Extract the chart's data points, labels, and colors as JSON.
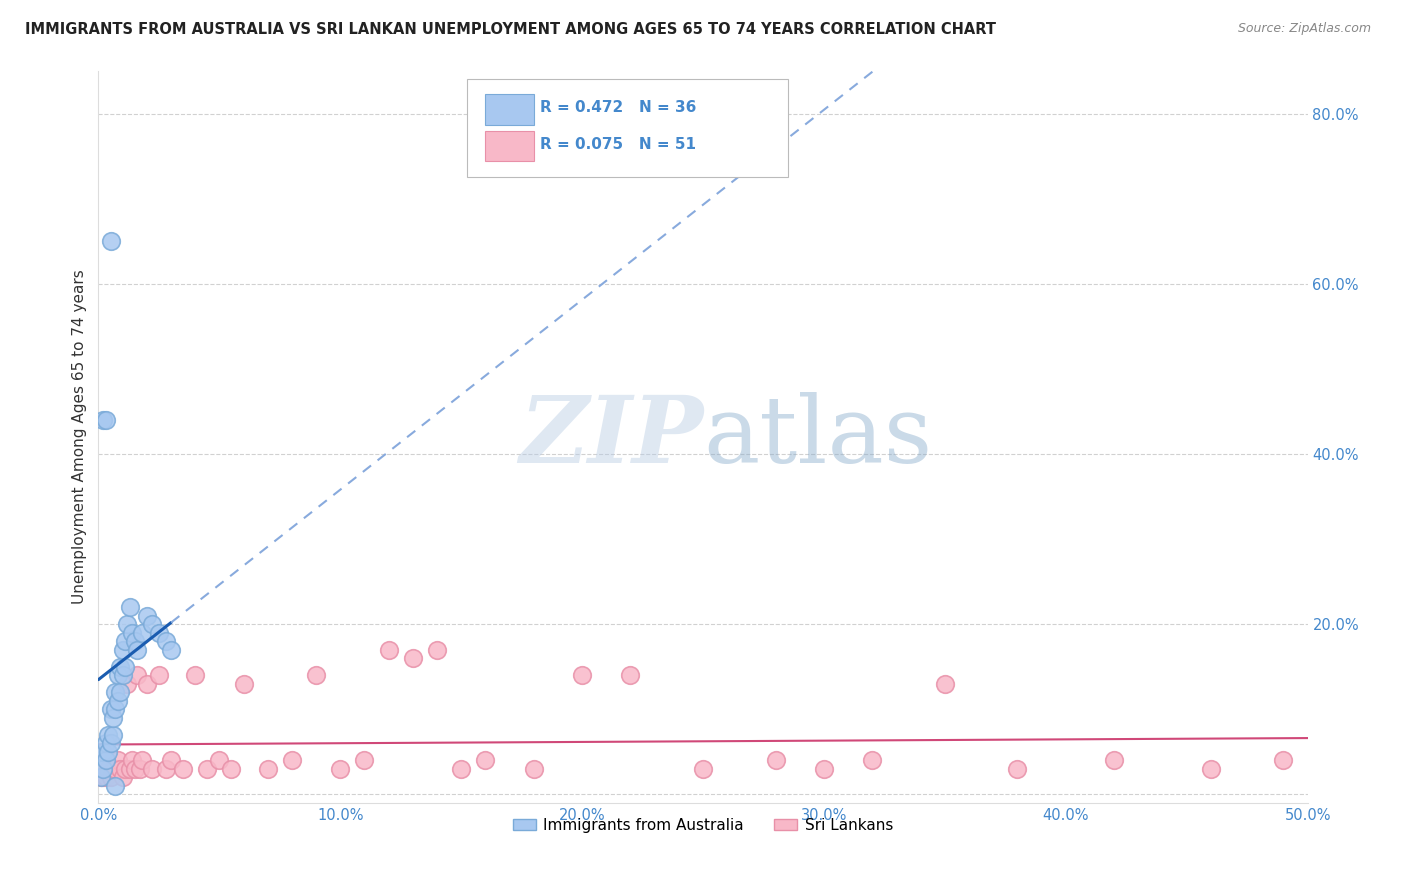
{
  "title": "IMMIGRANTS FROM AUSTRALIA VS SRI LANKAN UNEMPLOYMENT AMONG AGES 65 TO 74 YEARS CORRELATION CHART",
  "source": "Source: ZipAtlas.com",
  "ylabel_label": "Unemployment Among Ages 65 to 74 years",
  "legend_blue_r": "R = 0.472",
  "legend_blue_n": "N = 36",
  "legend_pink_r": "R = 0.075",
  "legend_pink_n": "N = 51",
  "legend_blue_label": "Immigrants from Australia",
  "legend_pink_label": "Sri Lankans",
  "xlim": [
    0.0,
    0.5
  ],
  "ylim": [
    -0.01,
    0.85
  ],
  "watermark_zip": "ZIP",
  "watermark_atlas": "atlas",
  "blue_scatter_x": [
    0.001,
    0.002,
    0.002,
    0.003,
    0.003,
    0.004,
    0.004,
    0.005,
    0.005,
    0.006,
    0.006,
    0.007,
    0.007,
    0.008,
    0.008,
    0.009,
    0.009,
    0.01,
    0.01,
    0.011,
    0.011,
    0.012,
    0.013,
    0.014,
    0.015,
    0.016,
    0.018,
    0.02,
    0.022,
    0.025,
    0.028,
    0.03,
    0.002,
    0.003,
    0.005,
    0.007
  ],
  "blue_scatter_y": [
    0.02,
    0.03,
    0.05,
    0.04,
    0.06,
    0.05,
    0.07,
    0.06,
    0.1,
    0.07,
    0.09,
    0.1,
    0.12,
    0.11,
    0.14,
    0.12,
    0.15,
    0.14,
    0.17,
    0.15,
    0.18,
    0.2,
    0.22,
    0.19,
    0.18,
    0.17,
    0.19,
    0.21,
    0.2,
    0.19,
    0.18,
    0.17,
    0.44,
    0.44,
    0.65,
    0.01
  ],
  "pink_scatter_x": [
    0.001,
    0.002,
    0.003,
    0.004,
    0.005,
    0.006,
    0.007,
    0.008,
    0.009,
    0.01,
    0.011,
    0.012,
    0.013,
    0.014,
    0.015,
    0.016,
    0.017,
    0.018,
    0.02,
    0.022,
    0.025,
    0.028,
    0.03,
    0.035,
    0.04,
    0.045,
    0.05,
    0.055,
    0.06,
    0.07,
    0.08,
    0.09,
    0.1,
    0.11,
    0.12,
    0.13,
    0.14,
    0.15,
    0.16,
    0.18,
    0.2,
    0.22,
    0.25,
    0.28,
    0.3,
    0.32,
    0.35,
    0.38,
    0.42,
    0.46,
    0.49
  ],
  "pink_scatter_y": [
    0.02,
    0.02,
    0.02,
    0.03,
    0.02,
    0.03,
    0.03,
    0.04,
    0.03,
    0.02,
    0.03,
    0.13,
    0.03,
    0.04,
    0.03,
    0.14,
    0.03,
    0.04,
    0.13,
    0.03,
    0.14,
    0.03,
    0.04,
    0.03,
    0.14,
    0.03,
    0.04,
    0.03,
    0.13,
    0.03,
    0.04,
    0.14,
    0.03,
    0.04,
    0.17,
    0.16,
    0.17,
    0.03,
    0.04,
    0.03,
    0.14,
    0.14,
    0.03,
    0.04,
    0.03,
    0.04,
    0.13,
    0.03,
    0.04,
    0.03,
    0.04
  ],
  "blue_dot_color": "#a8c8f0",
  "blue_edge_color": "#7aaad8",
  "pink_dot_color": "#f8b8c8",
  "pink_edge_color": "#e890a8",
  "blue_line_color": "#1a5cb0",
  "blue_dash_color": "#88aadd",
  "pink_line_color": "#d04878",
  "tick_color": "#4488cc",
  "background_color": "#ffffff",
  "grid_color": "#cccccc",
  "title_color": "#222222",
  "source_color": "#888888",
  "ylabel_color": "#333333"
}
